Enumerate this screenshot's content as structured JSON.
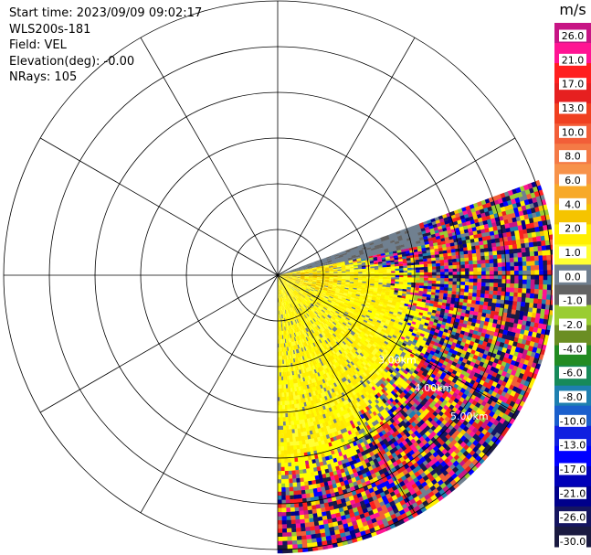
{
  "header": {
    "start_time": "Start time: 2023/09/09 09:02:17",
    "instrument": "WLS200s-181",
    "field": "Field: VEL",
    "elevation": "Elevation(deg): -0.00",
    "nrays": "NRays: 105"
  },
  "chart_data": {
    "type": "heatmap",
    "subtype": "polar_ppi",
    "field": "VEL",
    "unit": "m/s",
    "range_rings_km": [
      1,
      2,
      3,
      4,
      5,
      6
    ],
    "visible_range_labels": [
      "3.00km",
      "4.00km",
      "5.00km"
    ],
    "azimuth_lines_deg": [
      0,
      30,
      60,
      90,
      120,
      150,
      180,
      210,
      240,
      270,
      300,
      330
    ],
    "sector_deg": [
      70,
      180
    ],
    "grid": true,
    "colorbar": {
      "placement": "right",
      "title": "m/s",
      "vmin": -30,
      "vmax": 30,
      "tick_labels": [
        "26.0",
        "21.0",
        "17.0",
        "13.0",
        "10.0",
        "8.0",
        "6.0",
        "4.0",
        "2.0",
        "1.0",
        "0.0",
        "-1.0",
        "-2.0",
        "-4.0",
        "-6.0",
        "-8.0",
        "-10.0",
        "-13.0",
        "-17.0",
        "-21.0",
        "-26.0",
        "-30.0"
      ],
      "colors": [
        "#c71585",
        "#ff1493",
        "#ff1f1f",
        "#e62020",
        "#f04020",
        "#f25e38",
        "#f47a46",
        "#f7924a",
        "#f7a92a",
        "#f5c400",
        "#ffef00",
        "#ffff33",
        "#708090",
        "#636363",
        "#9acd32",
        "#6b8e23",
        "#228b22",
        "#178a5a",
        "#1e7fb0",
        "#1a5fcc",
        "#1020e0",
        "#0000ff",
        "#0000b8",
        "#00008b",
        "#151560",
        "#1a1a40"
      ]
    },
    "description_values": {
      "near_field_velocity_range_ms": [
        0.0,
        4.0
      ],
      "far_field": "noise"
    }
  }
}
